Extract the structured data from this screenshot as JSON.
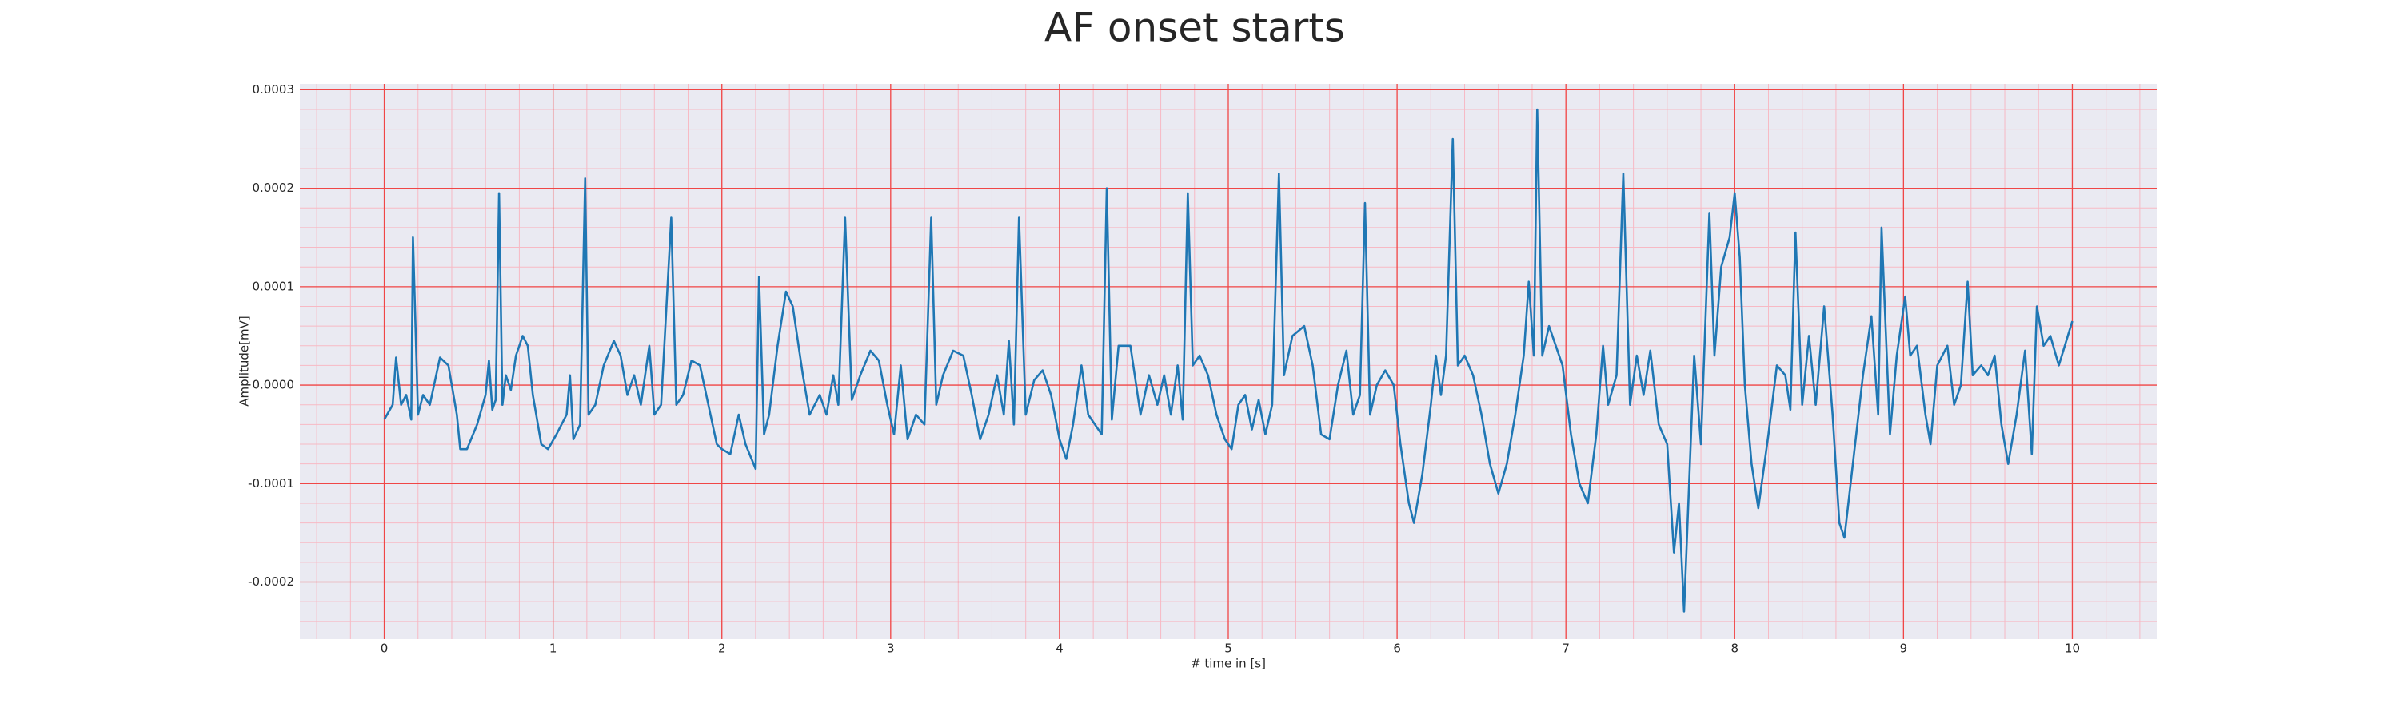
{
  "chart_data": {
    "type": "line",
    "title": "AF onset starts",
    "x_label": "# time in [s]",
    "y_label": "Amplitude[mV]",
    "xlim": [
      -0.5,
      10.5
    ],
    "ylim": [
      -0.000258,
      0.000306
    ],
    "xticks": [
      0,
      1,
      2,
      3,
      4,
      5,
      6,
      7,
      8,
      9,
      10
    ],
    "yticks": [
      -0.0002,
      -0.0001,
      {
        "value": 0,
        "label": "0.0000"
      },
      0.0001,
      0.0002,
      0.0003
    ],
    "grid": true,
    "minor_grid": true,
    "x": [
      0,
      0.05,
      0.07,
      0.1,
      0.13,
      0.16,
      0.17,
      0.2,
      0.23,
      0.27,
      0.33,
      0.38,
      0.43,
      0.45,
      0.49,
      0.55,
      0.6,
      0.62,
      0.64,
      0.66,
      0.68,
      0.7,
      0.72,
      0.75,
      0.78,
      0.82,
      0.85,
      0.88,
      0.93,
      0.97,
      1.02,
      1.08,
      1.1,
      1.12,
      1.16,
      1.19,
      1.21,
      1.25,
      1.3,
      1.36,
      1.4,
      1.44,
      1.48,
      1.52,
      1.57,
      1.6,
      1.64,
      1.7,
      1.73,
      1.77,
      1.82,
      1.87,
      1.92,
      1.97,
      2.0,
      2.05,
      2.1,
      2.14,
      2.2,
      2.22,
      2.25,
      2.28,
      2.33,
      2.38,
      2.42,
      2.48,
      2.52,
      2.58,
      2.62,
      2.66,
      2.69,
      2.73,
      2.77,
      2.82,
      2.88,
      2.93,
      2.98,
      3.02,
      3.06,
      3.1,
      3.15,
      3.2,
      3.24,
      3.27,
      3.31,
      3.37,
      3.43,
      3.48,
      3.53,
      3.58,
      3.63,
      3.67,
      3.7,
      3.73,
      3.76,
      3.8,
      3.85,
      3.9,
      3.95,
      4.0,
      4.04,
      4.08,
      4.13,
      4.17,
      4.21,
      4.25,
      4.28,
      4.31,
      4.35,
      4.42,
      4.48,
      4.53,
      4.58,
      4.62,
      4.66,
      4.7,
      4.73,
      4.76,
      4.79,
      4.83,
      4.88,
      4.93,
      4.98,
      5.02,
      5.06,
      5.1,
      5.14,
      5.18,
      5.22,
      5.26,
      5.3,
      5.33,
      5.38,
      5.45,
      5.5,
      5.55,
      5.6,
      5.65,
      5.7,
      5.74,
      5.78,
      5.81,
      5.84,
      5.88,
      5.93,
      5.98,
      6.02,
      6.07,
      6.1,
      6.15,
      6.2,
      6.23,
      6.26,
      6.29,
      6.33,
      6.36,
      6.4,
      6.45,
      6.5,
      6.55,
      6.6,
      6.65,
      6.7,
      6.75,
      6.78,
      6.81,
      6.83,
      6.86,
      6.9,
      6.94,
      6.98,
      7.03,
      7.08,
      7.13,
      7.18,
      7.22,
      7.25,
      7.3,
      7.34,
      7.38,
      7.42,
      7.46,
      7.5,
      7.55,
      7.6,
      7.64,
      7.67,
      7.7,
      7.73,
      7.76,
      7.8,
      7.85,
      7.88,
      7.92,
      7.97,
      8.0,
      8.03,
      8.06,
      8.1,
      8.14,
      8.2,
      8.25,
      8.3,
      8.33,
      8.36,
      8.4,
      8.44,
      8.48,
      8.53,
      8.58,
      8.62,
      8.65,
      8.7,
      8.76,
      8.81,
      8.85,
      8.87,
      8.92,
      8.96,
      9.01,
      9.04,
      9.08,
      9.13,
      9.16,
      9.2,
      9.26,
      9.3,
      9.34,
      9.38,
      9.41,
      9.46,
      9.5,
      9.54,
      9.58,
      9.62,
      9.67,
      9.72,
      9.76,
      9.79,
      9.83,
      9.87,
      9.92,
      10.0
    ],
    "series": [
      {
        "color": "#1f77b4",
        "values": [
          -3.5e-05,
          -2e-05,
          2.8e-05,
          -2e-05,
          -1e-05,
          -3.5e-05,
          0.00015,
          -3e-05,
          -1e-05,
          -2e-05,
          2.8e-05,
          2e-05,
          -3e-05,
          -6.5e-05,
          -6.5e-05,
          -4e-05,
          -1e-05,
          2.5e-05,
          -2.5e-05,
          -1.5e-05,
          0.000195,
          -2e-05,
          1e-05,
          -5e-06,
          3e-05,
          5e-05,
          4e-05,
          -1e-05,
          -6e-05,
          -6.5e-05,
          -5e-05,
          -3e-05,
          1e-05,
          -5.5e-05,
          -4e-05,
          0.00021,
          -3e-05,
          -2e-05,
          2e-05,
          4.5e-05,
          3e-05,
          -1e-05,
          1e-05,
          -2e-05,
          4e-05,
          -3e-05,
          -2e-05,
          0.00017,
          -2e-05,
          -1e-05,
          2.5e-05,
          2e-05,
          -2e-05,
          -6e-05,
          -6.5e-05,
          -7e-05,
          -3e-05,
          -6e-05,
          -8.5e-05,
          0.00011,
          -5e-05,
          -3e-05,
          4e-05,
          9.5e-05,
          8e-05,
          1e-05,
          -3e-05,
          -1e-05,
          -3e-05,
          1e-05,
          -2e-05,
          0.00017,
          -1.5e-05,
          1e-05,
          3.5e-05,
          2.5e-05,
          -2e-05,
          -5e-05,
          2e-05,
          -5.5e-05,
          -3e-05,
          -4e-05,
          0.00017,
          -2e-05,
          1e-05,
          3.5e-05,
          3e-05,
          -1e-05,
          -5.5e-05,
          -3e-05,
          1e-05,
          -3e-05,
          4.5e-05,
          -4e-05,
          0.00017,
          -3e-05,
          5e-06,
          1.5e-05,
          -1e-05,
          -5.5e-05,
          -7.5e-05,
          -4e-05,
          2e-05,
          -3e-05,
          -4e-05,
          -5e-05,
          0.0002,
          -3.5e-05,
          4e-05,
          4e-05,
          -3e-05,
          1e-05,
          -2e-05,
          1e-05,
          -3e-05,
          2e-05,
          -3.5e-05,
          0.000195,
          2e-05,
          3e-05,
          1e-05,
          -3e-05,
          -5.5e-05,
          -6.5e-05,
          -2e-05,
          -1e-05,
          -4.5e-05,
          -1.5e-05,
          -5e-05,
          -2e-05,
          0.000215,
          1e-05,
          5e-05,
          6e-05,
          2e-05,
          -5e-05,
          -5.5e-05,
          0,
          3.5e-05,
          -3e-05,
          -1e-05,
          0.000185,
          -3e-05,
          0,
          1.5e-05,
          0,
          -6e-05,
          -0.00012,
          -0.00014,
          -9e-05,
          -2e-05,
          3e-05,
          -1e-05,
          3e-05,
          0.00025,
          2e-05,
          3e-05,
          1e-05,
          -3e-05,
          -8e-05,
          -0.00011,
          -8e-05,
          -3e-05,
          3e-05,
          0.000105,
          3e-05,
          0.00028,
          3e-05,
          6e-05,
          4e-05,
          2e-05,
          -5e-05,
          -0.0001,
          -0.00012,
          -5e-05,
          4e-05,
          -2e-05,
          1e-05,
          0.000215,
          -2e-05,
          3e-05,
          -1e-05,
          3.5e-05,
          -4e-05,
          -6e-05,
          -0.00017,
          -0.00012,
          -0.00023,
          -0.0001,
          3e-05,
          -6e-05,
          0.000175,
          3e-05,
          0.00012,
          0.00015,
          0.000195,
          0.00013,
          0,
          -8e-05,
          -0.000125,
          -5e-05,
          2e-05,
          1e-05,
          -2.5e-05,
          0.000155,
          -2e-05,
          5e-05,
          -2e-05,
          8e-05,
          -3e-05,
          -0.00014,
          -0.000155,
          -8e-05,
          1e-05,
          7e-05,
          -3e-05,
          0.00016,
          -5e-05,
          3e-05,
          9e-05,
          3e-05,
          4e-05,
          -3e-05,
          -6e-05,
          2e-05,
          4e-05,
          -2e-05,
          0,
          0.000105,
          1e-05,
          2e-05,
          1e-05,
          3e-05,
          -4e-05,
          -8e-05,
          -3e-05,
          3.5e-05,
          -7e-05,
          8e-05,
          4e-05,
          5e-05,
          2e-05,
          6.5e-05
        ]
      }
    ]
  }
}
